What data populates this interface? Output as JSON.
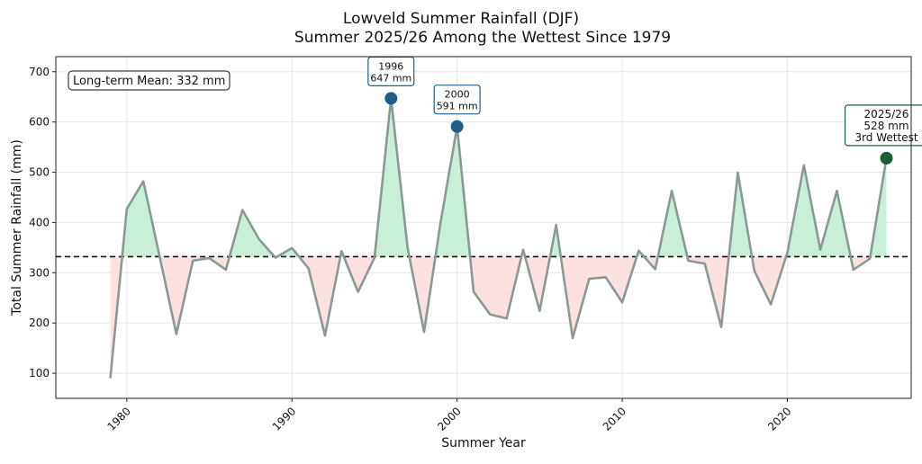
{
  "chart_data": {
    "type": "line",
    "title": "Lowveld Summer Rainfall (DJF)",
    "subtitle": "Summer 2025/26 Among the Wettest Since 1979",
    "xlabel": "Summer Year",
    "ylabel": "Total Summer Rainfall (mm)",
    "xlim": [
      1975.7,
      2027.5
    ],
    "ylim": [
      50,
      730
    ],
    "grid": true,
    "xticks": [
      1980,
      1990,
      2000,
      2010,
      2020
    ],
    "yticks": [
      100,
      200,
      300,
      400,
      500,
      600,
      700
    ],
    "x": [
      1979,
      1980,
      1981,
      1982,
      1983,
      1984,
      1985,
      1986,
      1987,
      1988,
      1989,
      1990,
      1991,
      1992,
      1993,
      1994,
      1995,
      1996,
      1997,
      1998,
      1999,
      2000,
      2001,
      2002,
      2003,
      2004,
      2005,
      2006,
      2007,
      2008,
      2009,
      2010,
      2011,
      2012,
      2013,
      2014,
      2015,
      2016,
      2017,
      2018,
      2019,
      2020,
      2021,
      2022,
      2023,
      2024,
      2025,
      2026
    ],
    "y": [
      90,
      427,
      482,
      330,
      178,
      324,
      329,
      306,
      425,
      367,
      330,
      349,
      309,
      175,
      343,
      262,
      330,
      647,
      350,
      182,
      400,
      591,
      262,
      217,
      209,
      346,
      224,
      395,
      170,
      288,
      291,
      241,
      344,
      307,
      463,
      324,
      318,
      192,
      499,
      304,
      237,
      340,
      514,
      346,
      463,
      306,
      328,
      528
    ],
    "mean": {
      "value": 332,
      "label": "Long-term Mean: 332 mm"
    },
    "annotations": [
      {
        "x": 1996,
        "y": 647,
        "lines": [
          "1996",
          "647 mm"
        ],
        "color": "#1f5f8b"
      },
      {
        "x": 2000,
        "y": 591,
        "lines": [
          "2000",
          "591 mm"
        ],
        "color": "#1f5f8b"
      },
      {
        "x": 2026,
        "y": 528,
        "lines": [
          "2025/26",
          "528 mm",
          "3rd Wettest"
        ],
        "color": "#1b5e35"
      }
    ],
    "colors": {
      "line": "#8a9995",
      "above": "#c9efd8",
      "below": "#fbe1df",
      "mean": "#111111"
    },
    "legend": "top-left"
  }
}
